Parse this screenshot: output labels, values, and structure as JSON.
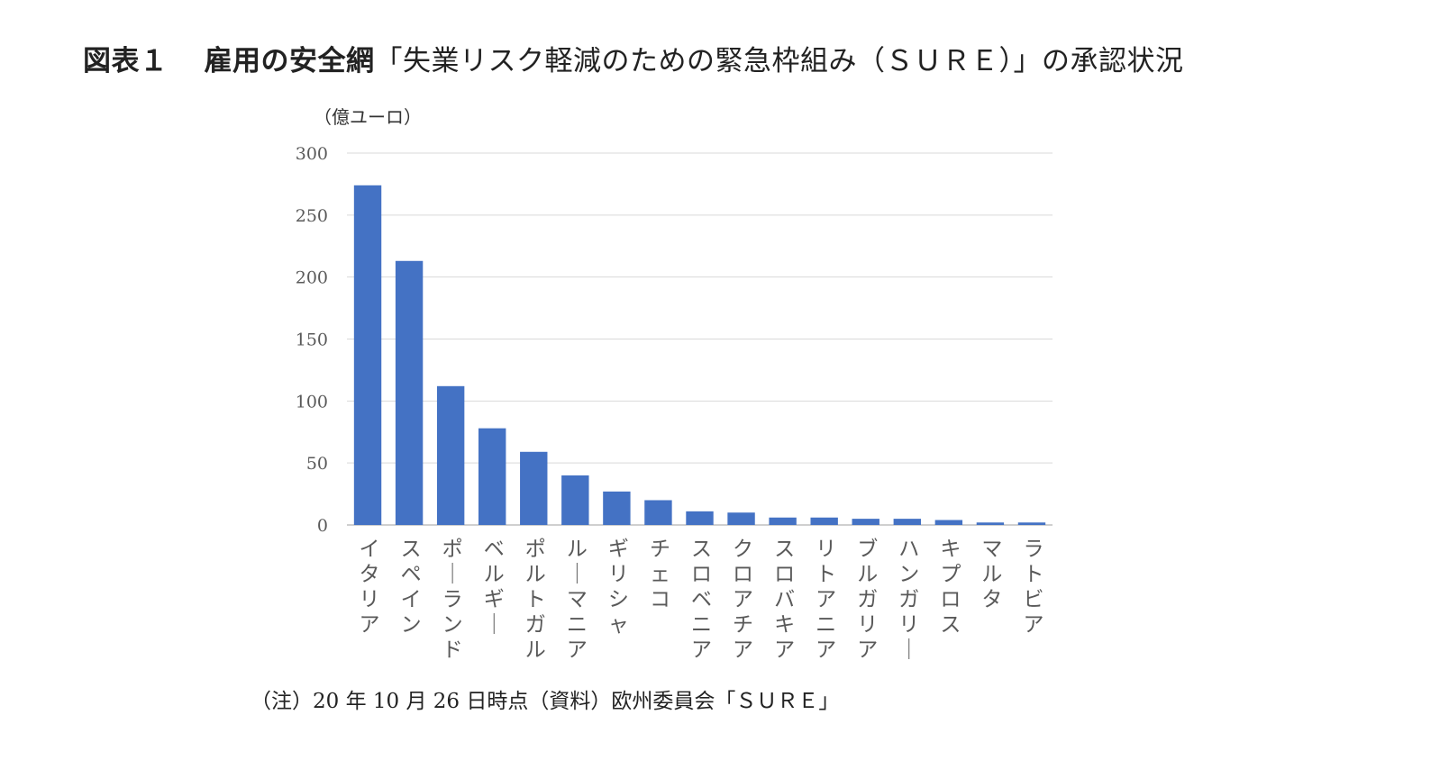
{
  "figure": {
    "label": "図表１",
    "title_bold": "雇用の安全網",
    "title_rest": "「失業リスク軽減のための緊急枠組み（ＳＵＲＥ）」の承認状況"
  },
  "chart_data": {
    "type": "bar",
    "y_unit_label": "（億ユーロ）",
    "categories": [
      "イタリア",
      "スペイン",
      "ポーランド",
      "ベルギー",
      "ポルトガル",
      "ルーマニア",
      "ギリシャ",
      "チェコ",
      "スロベニア",
      "クロアチア",
      "スロバキア",
      "リトアニア",
      "ブルガリア",
      "ハンガリー",
      "キプロス",
      "マルタ",
      "ラトビア"
    ],
    "values": [
      274,
      213,
      112,
      78,
      59,
      40,
      27,
      20,
      11,
      10,
      6,
      6,
      5,
      5,
      4,
      2,
      2
    ],
    "ylim": [
      0,
      300
    ],
    "yticks": [
      0,
      50,
      100,
      150,
      200,
      250,
      300
    ],
    "grid": true,
    "bar_color": "#4472C4",
    "grid_color": "#D9D9D9"
  },
  "footnote": "（注）20 年 10 月 26 日時点（資料）欧州委員会「ＳＵＲＥ」"
}
